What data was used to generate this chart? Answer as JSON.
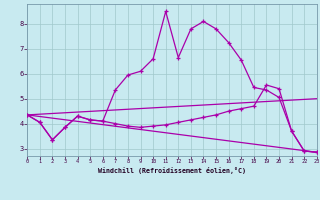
{
  "bg_color": "#c8eaf0",
  "grid_color": "#a0c8cc",
  "line_color": "#aa00aa",
  "xlabel": "Windchill (Refroidissement éolien,°C)",
  "xlim": [
    0,
    23
  ],
  "ylim": [
    2.7,
    8.8
  ],
  "yticks": [
    3,
    4,
    5,
    6,
    7,
    8
  ],
  "xticks": [
    0,
    1,
    2,
    3,
    4,
    5,
    6,
    7,
    8,
    9,
    10,
    11,
    12,
    13,
    14,
    15,
    16,
    17,
    18,
    19,
    20,
    21,
    22,
    23
  ],
  "line1_x": [
    0,
    1,
    2,
    3,
    4,
    5,
    6,
    7,
    8,
    9,
    10,
    11,
    12,
    13,
    14,
    15,
    16,
    17,
    18,
    19,
    20,
    21,
    22,
    23
  ],
  "line1_y": [
    4.35,
    4.05,
    3.35,
    3.85,
    4.3,
    4.15,
    4.1,
    5.35,
    5.95,
    6.1,
    6.6,
    8.5,
    6.65,
    7.8,
    8.1,
    7.8,
    7.25,
    6.55,
    5.45,
    5.35,
    5.05,
    3.7,
    2.9,
    2.85
  ],
  "line2_x": [
    0,
    1,
    2,
    3,
    4,
    5,
    6,
    7,
    8,
    9,
    10,
    11,
    12,
    13,
    14,
    15,
    16,
    17,
    18,
    19,
    20,
    21,
    22,
    23
  ],
  "line2_y": [
    4.35,
    4.05,
    3.35,
    3.85,
    4.3,
    4.15,
    4.1,
    4.0,
    3.9,
    3.85,
    3.9,
    3.95,
    4.05,
    4.15,
    4.25,
    4.35,
    4.5,
    4.6,
    4.7,
    5.55,
    5.4,
    3.7,
    2.9,
    2.85
  ],
  "line3_x": [
    0,
    23
  ],
  "line3_y": [
    4.35,
    2.85
  ],
  "line4_x": [
    0,
    23
  ],
  "line4_y": [
    4.35,
    5.0
  ]
}
